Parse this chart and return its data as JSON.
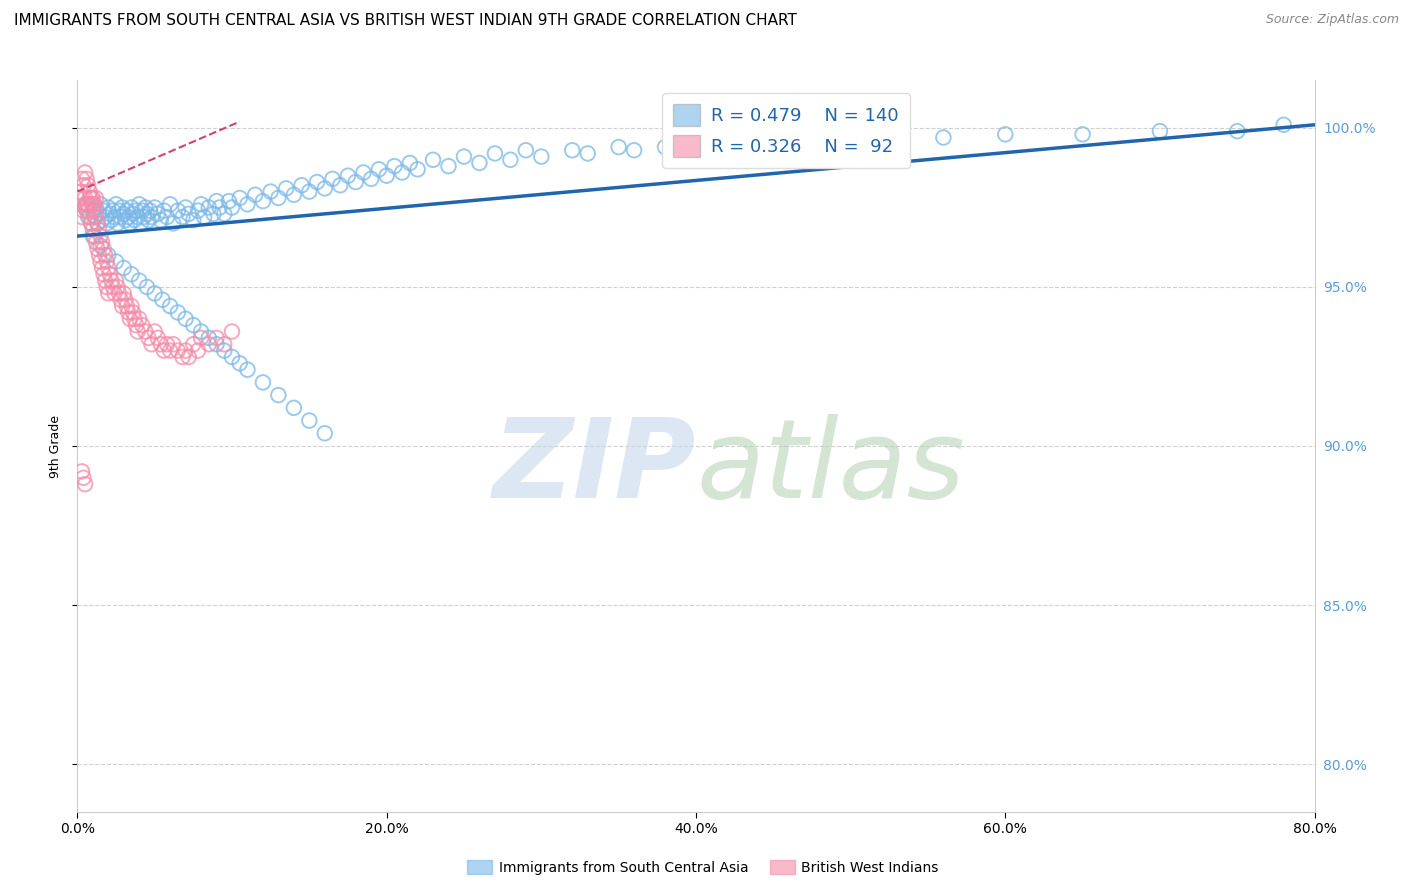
{
  "title": "IMMIGRANTS FROM SOUTH CENTRAL ASIA VS BRITISH WEST INDIAN 9TH GRADE CORRELATION CHART",
  "source": "Source: ZipAtlas.com",
  "ylabel": "9th Grade",
  "x_tick_labels": [
    "0.0%",
    "20.0%",
    "40.0%",
    "60.0%",
    "80.0%"
  ],
  "y_tick_labels": [
    "80.0%",
    "85.0%",
    "90.0%",
    "95.0%",
    "100.0%"
  ],
  "x_ticks": [
    0.0,
    0.2,
    0.4,
    0.6,
    0.8
  ],
  "y_ticks": [
    0.8,
    0.85,
    0.9,
    0.95,
    1.0
  ],
  "x_range": [
    0.0,
    0.8
  ],
  "y_range": [
    0.785,
    1.015
  ],
  "blue_scatter_x": [
    0.005,
    0.007,
    0.009,
    0.01,
    0.011,
    0.012,
    0.013,
    0.014,
    0.015,
    0.016,
    0.017,
    0.018,
    0.019,
    0.02,
    0.021,
    0.022,
    0.023,
    0.024,
    0.025,
    0.026,
    0.027,
    0.028,
    0.029,
    0.03,
    0.031,
    0.032,
    0.033,
    0.034,
    0.035,
    0.036,
    0.037,
    0.038,
    0.039,
    0.04,
    0.041,
    0.042,
    0.043,
    0.044,
    0.045,
    0.046,
    0.047,
    0.048,
    0.05,
    0.052,
    0.054,
    0.056,
    0.058,
    0.06,
    0.062,
    0.065,
    0.068,
    0.07,
    0.072,
    0.075,
    0.078,
    0.08,
    0.082,
    0.085,
    0.088,
    0.09,
    0.092,
    0.095,
    0.098,
    0.1,
    0.105,
    0.11,
    0.115,
    0.12,
    0.125,
    0.13,
    0.135,
    0.14,
    0.145,
    0.15,
    0.155,
    0.16,
    0.165,
    0.17,
    0.175,
    0.18,
    0.185,
    0.19,
    0.195,
    0.2,
    0.205,
    0.21,
    0.215,
    0.22,
    0.23,
    0.24,
    0.25,
    0.26,
    0.27,
    0.28,
    0.29,
    0.3,
    0.32,
    0.33,
    0.35,
    0.36,
    0.38,
    0.4,
    0.42,
    0.44,
    0.46,
    0.48,
    0.5,
    0.52,
    0.56,
    0.6,
    0.65,
    0.7,
    0.75,
    0.78,
    0.01,
    0.015,
    0.02,
    0.025,
    0.03,
    0.035,
    0.04,
    0.045,
    0.05,
    0.055,
    0.06,
    0.065,
    0.07,
    0.075,
    0.08,
    0.085,
    0.09,
    0.095,
    0.1,
    0.105,
    0.11,
    0.12,
    0.13,
    0.14,
    0.15,
    0.16
  ],
  "blue_scatter_y": [
    0.975,
    0.972,
    0.97,
    0.974,
    0.972,
    0.975,
    0.97,
    0.973,
    0.976,
    0.971,
    0.974,
    0.972,
    0.97,
    0.975,
    0.973,
    0.971,
    0.974,
    0.972,
    0.976,
    0.97,
    0.974,
    0.972,
    0.975,
    0.973,
    0.971,
    0.974,
    0.972,
    0.97,
    0.975,
    0.973,
    0.971,
    0.974,
    0.972,
    0.976,
    0.97,
    0.974,
    0.972,
    0.975,
    0.973,
    0.971,
    0.974,
    0.972,
    0.975,
    0.973,
    0.971,
    0.974,
    0.972,
    0.976,
    0.97,
    0.974,
    0.972,
    0.975,
    0.973,
    0.971,
    0.974,
    0.976,
    0.972,
    0.975,
    0.973,
    0.977,
    0.975,
    0.973,
    0.977,
    0.975,
    0.978,
    0.976,
    0.979,
    0.977,
    0.98,
    0.978,
    0.981,
    0.979,
    0.982,
    0.98,
    0.983,
    0.981,
    0.984,
    0.982,
    0.985,
    0.983,
    0.986,
    0.984,
    0.987,
    0.985,
    0.988,
    0.986,
    0.989,
    0.987,
    0.99,
    0.988,
    0.991,
    0.989,
    0.992,
    0.99,
    0.993,
    0.991,
    0.993,
    0.992,
    0.994,
    0.993,
    0.994,
    0.995,
    0.994,
    0.996,
    0.995,
    0.996,
    0.997,
    0.996,
    0.997,
    0.998,
    0.998,
    0.999,
    0.999,
    1.001,
    0.966,
    0.963,
    0.96,
    0.958,
    0.956,
    0.954,
    0.952,
    0.95,
    0.948,
    0.946,
    0.944,
    0.942,
    0.94,
    0.938,
    0.936,
    0.934,
    0.932,
    0.93,
    0.928,
    0.926,
    0.924,
    0.92,
    0.916,
    0.912,
    0.908,
    0.904
  ],
  "pink_scatter_x": [
    0.002,
    0.003,
    0.004,
    0.005,
    0.005,
    0.006,
    0.006,
    0.007,
    0.007,
    0.008,
    0.008,
    0.009,
    0.009,
    0.01,
    0.01,
    0.011,
    0.011,
    0.012,
    0.012,
    0.013,
    0.013,
    0.014,
    0.014,
    0.015,
    0.015,
    0.016,
    0.016,
    0.017,
    0.017,
    0.018,
    0.018,
    0.019,
    0.019,
    0.02,
    0.02,
    0.021,
    0.022,
    0.023,
    0.024,
    0.025,
    0.026,
    0.027,
    0.028,
    0.029,
    0.03,
    0.031,
    0.032,
    0.033,
    0.034,
    0.035,
    0.036,
    0.037,
    0.038,
    0.039,
    0.04,
    0.042,
    0.044,
    0.046,
    0.048,
    0.05,
    0.052,
    0.054,
    0.056,
    0.058,
    0.06,
    0.062,
    0.065,
    0.068,
    0.07,
    0.072,
    0.075,
    0.078,
    0.08,
    0.085,
    0.09,
    0.095,
    0.1,
    0.003,
    0.004,
    0.005,
    0.006,
    0.007,
    0.008,
    0.009,
    0.01,
    0.011,
    0.012,
    0.003,
    0.004,
    0.005
  ],
  "pink_scatter_y": [
    0.98,
    0.984,
    0.982,
    0.986,
    0.978,
    0.984,
    0.976,
    0.982,
    0.974,
    0.98,
    0.972,
    0.978,
    0.97,
    0.976,
    0.968,
    0.974,
    0.966,
    0.972,
    0.964,
    0.97,
    0.962,
    0.968,
    0.96,
    0.966,
    0.958,
    0.964,
    0.956,
    0.962,
    0.954,
    0.96,
    0.952,
    0.958,
    0.95,
    0.956,
    0.948,
    0.954,
    0.952,
    0.95,
    0.948,
    0.952,
    0.95,
    0.948,
    0.946,
    0.944,
    0.948,
    0.946,
    0.944,
    0.942,
    0.94,
    0.944,
    0.942,
    0.94,
    0.938,
    0.936,
    0.94,
    0.938,
    0.936,
    0.934,
    0.932,
    0.936,
    0.934,
    0.932,
    0.93,
    0.932,
    0.93,
    0.932,
    0.93,
    0.928,
    0.93,
    0.928,
    0.932,
    0.93,
    0.934,
    0.932,
    0.934,
    0.932,
    0.936,
    0.972,
    0.974,
    0.976,
    0.974,
    0.976,
    0.978,
    0.976,
    0.978,
    0.976,
    0.978,
    0.892,
    0.89,
    0.888
  ],
  "blue_line_x": [
    0.0,
    0.8
  ],
  "blue_line_y": [
    0.966,
    1.001
  ],
  "pink_line_x": [
    0.0,
    0.105
  ],
  "pink_line_y": [
    0.98,
    1.002
  ],
  "blue_color": "#7ab8e8",
  "pink_color": "#f48ca8",
  "blue_line_color": "#2166ac",
  "pink_line_color": "#d44070",
  "grid_color": "#d0d0d0",
  "title_fontsize": 11,
  "source_fontsize": 9,
  "axis_label_fontsize": 9,
  "tick_fontsize": 10,
  "legend_fontsize": 13,
  "ytick_color": "#5b9bd5",
  "watermark_zip_color": "#c5d8ec",
  "watermark_atlas_color": "#b8d4b8"
}
